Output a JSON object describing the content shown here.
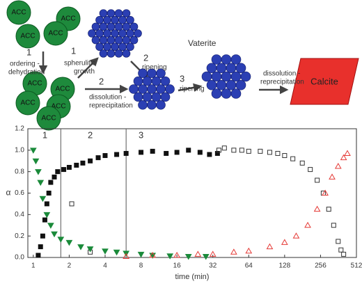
{
  "schematic": {
    "particles": [
      "ACC",
      "ACC",
      "ACC",
      "ACC",
      "ACC",
      "ACC",
      "ACC",
      "ACC",
      "ACC"
    ],
    "captions": [
      "1",
      "ordering -",
      "dehydration",
      "1",
      "spherulitic",
      "growth",
      "Vaterite",
      "2",
      "ripening",
      "2",
      "dissolution -",
      "reprecipitation",
      "3",
      "ripening",
      "dissolution -",
      "reprecipitation"
    ],
    "product": "Calcite"
  },
  "chart_data": {
    "type": "scatter",
    "xlabel": "time (min)",
    "ylabel": "α",
    "log_x": true,
    "xlim": [
      0.9,
      512
    ],
    "ylim": [
      0,
      1.2
    ],
    "xticks": [
      1,
      2,
      4,
      8,
      16,
      32,
      64,
      128,
      256,
      512
    ],
    "yticks": [
      {
        "value": 0,
        "label": "0.0"
      },
      {
        "value": 0.2,
        "label": "0.2"
      },
      {
        "value": 0.4,
        "label": "0.4"
      },
      {
        "value": 0.6,
        "label": "0.6"
      },
      {
        "value": 0.8,
        "label": "0.8"
      },
      {
        "value": 1.0,
        "label": "1.0"
      },
      {
        "value": 1.2,
        "label": "1.2"
      }
    ],
    "stage_lines": [
      1.7,
      6
    ],
    "stage_labels": [
      {
        "x": 1.25,
        "label": "1"
      },
      {
        "x": 3,
        "label": "2"
      },
      {
        "x": 8,
        "label": "3"
      }
    ],
    "series": [
      {
        "color": "#111111",
        "marker": "square-filled",
        "x": [
          1.1,
          1.15,
          1.2,
          1.25,
          1.3,
          1.35,
          1.4,
          1.5,
          1.6,
          1.8,
          2,
          2.3,
          2.6,
          3,
          3.5,
          4,
          5,
          6,
          8,
          10,
          13,
          16,
          20,
          25,
          30,
          35
        ],
        "values": [
          0.02,
          0.1,
          0.2,
          0.35,
          0.5,
          0.6,
          0.7,
          0.75,
          0.8,
          0.82,
          0.84,
          0.86,
          0.88,
          0.9,
          0.93,
          0.95,
          0.96,
          0.97,
          0.98,
          0.99,
          0.97,
          0.98,
          1.0,
          0.98,
          0.96,
          0.97
        ]
      },
      {
        "color": "#333333",
        "marker": "square-open",
        "x": [
          2.1,
          3,
          36,
          40,
          48,
          56,
          64,
          80,
          96,
          112,
          128,
          150,
          180,
          210,
          240,
          270,
          300,
          330,
          360,
          380,
          400
        ],
        "values": [
          0.5,
          0.05,
          1.0,
          1.02,
          1.0,
          1.0,
          0.99,
          0.99,
          0.98,
          0.97,
          0.95,
          0.92,
          0.88,
          0.82,
          0.72,
          0.6,
          0.45,
          0.3,
          0.15,
          0.07,
          0.03
        ]
      },
      {
        "color": "#1a8a3a",
        "marker": "triangle-down-filled",
        "x": [
          1,
          1.05,
          1.1,
          1.15,
          1.2,
          1.3,
          1.4,
          1.5,
          1.7,
          2,
          2.5,
          3,
          4,
          5,
          6,
          8,
          10,
          14,
          20,
          28
        ],
        "values": [
          1.0,
          0.9,
          0.8,
          0.7,
          0.55,
          0.4,
          0.3,
          0.22,
          0.17,
          0.14,
          0.1,
          0.08,
          0.06,
          0.05,
          0.04,
          0.03,
          0.02,
          0.015,
          0.01,
          0.01
        ]
      },
      {
        "color": "#e53935",
        "marker": "triangle-up-open",
        "x": [
          6,
          10,
          16,
          24,
          32,
          48,
          64,
          96,
          128,
          160,
          200,
          240,
          280,
          320,
          360,
          400,
          430
        ],
        "values": [
          0.01,
          0.02,
          0.02,
          0.03,
          0.03,
          0.05,
          0.06,
          0.1,
          0.14,
          0.2,
          0.3,
          0.45,
          0.6,
          0.75,
          0.85,
          0.93,
          0.97
        ]
      }
    ]
  }
}
